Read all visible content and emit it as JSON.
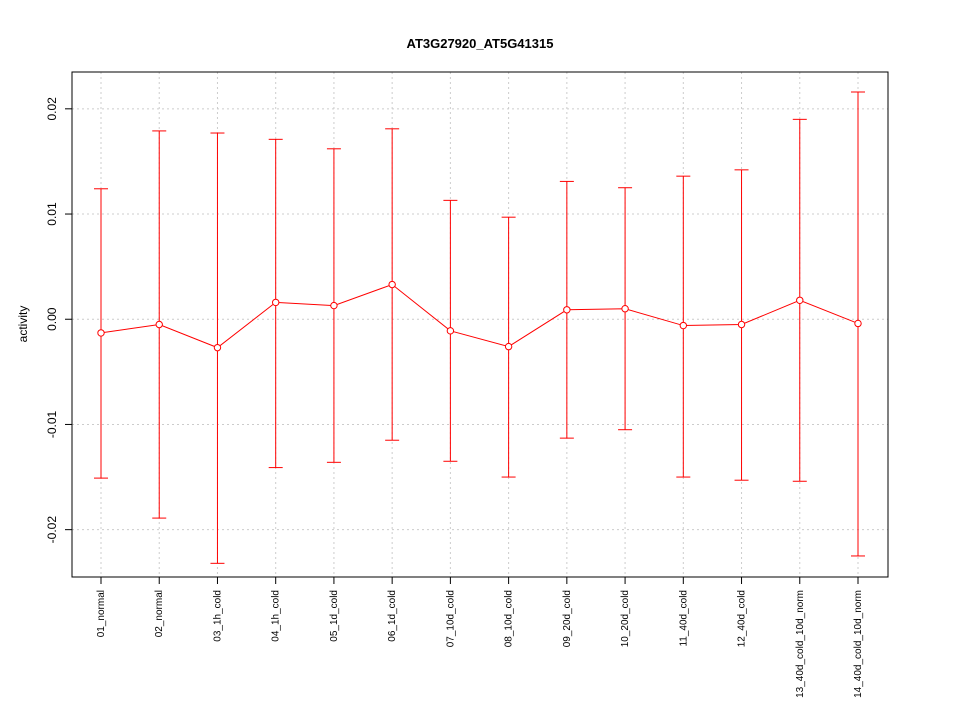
{
  "chart_data": {
    "type": "line",
    "title": "AT3G27920_AT5G41315",
    "xlabel": "",
    "ylabel": "activity",
    "ylim": [
      -0.0245,
      0.0235
    ],
    "yticks": [
      -0.02,
      -0.01,
      0.0,
      0.01,
      0.02
    ],
    "ytick_labels": [
      "-0.02",
      "-0.01",
      "0.00",
      "0.01",
      "0.02"
    ],
    "grid": true,
    "categories": [
      "01_normal",
      "02_normal",
      "03_1h_cold",
      "04_1h_cold",
      "05_1d_cold",
      "06_1d_cold",
      "07_10d_cold",
      "08_10d_cold",
      "09_20d_cold",
      "10_20d_cold",
      "11_40d_cold",
      "12_40d_cold",
      "13_40d_cold_10d_norm",
      "14_40d_cold_10d_norm"
    ],
    "series": [
      {
        "values": [
          -0.0013,
          -0.0005,
          -0.0027,
          0.0016,
          0.0013,
          0.0033,
          -0.0011,
          -0.0026,
          0.0009,
          0.001,
          -0.0006,
          -0.0005,
          0.0018,
          -0.0004
        ],
        "upper": [
          0.0124,
          0.0179,
          0.0177,
          0.0171,
          0.0162,
          0.0181,
          0.0113,
          0.0097,
          0.0131,
          0.0125,
          0.0136,
          0.0142,
          0.019,
          0.0216
        ],
        "lower": [
          -0.0151,
          -0.0189,
          -0.0232,
          -0.0141,
          -0.0136,
          -0.0115,
          -0.0135,
          -0.015,
          -0.0113,
          -0.0105,
          -0.015,
          -0.0153,
          -0.0154,
          -0.0225
        ],
        "color": "#ff0000"
      }
    ],
    "colors": {
      "series": "#ff0000",
      "grid": "#cccccc",
      "axis": "#000000"
    }
  }
}
